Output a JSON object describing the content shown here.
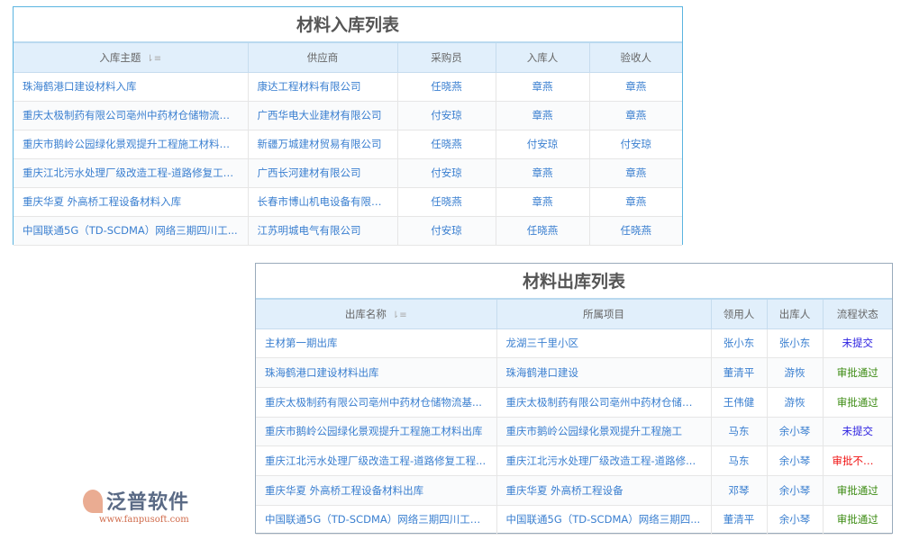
{
  "inbound": {
    "title": "材料入库列表",
    "sort_icon": "sort-icon",
    "columns": [
      "入库主题",
      "供应商",
      "采购员",
      "入库人",
      "验收人"
    ],
    "rows": [
      [
        "珠海鹤港口建设材料入库",
        "康达工程材料有限公司",
        "任晓燕",
        "章燕",
        "章燕"
      ],
      [
        "重庆太极制药有限公司亳州中药材仓储物流基...",
        "广西华电大业建材有限公司",
        "付安琼",
        "章燕",
        "章燕"
      ],
      [
        "重庆市鹅岭公园绿化景观提升工程施工材料入库",
        "新疆万城建材贸易有限公司",
        "任晓燕",
        "付安琼",
        "付安琼"
      ],
      [
        "重庆江北污水处理厂级改造工程-道路修复工程...",
        "广西长河建材有限公司",
        "付安琼",
        "章燕",
        "章燕"
      ],
      [
        "重庆华夏 外高桥工程设备材料入库",
        "长春市博山机电设备有限公司",
        "任晓燕",
        "章燕",
        "章燕"
      ],
      [
        "中国联通5G（TD-SCDMA）网络三期四川工...",
        "江苏明城电气有限公司",
        "付安琼",
        "任晓燕",
        "任晓燕"
      ]
    ]
  },
  "outbound": {
    "title": "材料出库列表",
    "columns": [
      "出库名称",
      "所属项目",
      "领用人",
      "出库人",
      "流程状态"
    ],
    "rows": [
      [
        "主材第一期出库",
        "龙湖三千里小区",
        "张小东",
        "张小东",
        "未提交"
      ],
      [
        "珠海鹤港口建设材料出库",
        "珠海鹤港口建设",
        "董清平",
        "游恢",
        "审批通过"
      ],
      [
        "重庆太极制药有限公司亳州中药材仓储物流基...",
        "重庆太极制药有限公司亳州中药材仓储物...",
        "王伟健",
        "游恢",
        "审批通过"
      ],
      [
        "重庆市鹅岭公园绿化景观提升工程施工材料出库",
        "重庆市鹅岭公园绿化景观提升工程施工",
        "马东",
        "余小琴",
        "未提交"
      ],
      [
        "重庆江北污水处理厂级改造工程-道路修复工程...",
        "重庆江北污水处理厂级改造工程-道路修...",
        "马东",
        "余小琴",
        "审批不通过"
      ],
      [
        "重庆华夏 外高桥工程设备材料出库",
        "重庆华夏 外高桥工程设备",
        "邓琴",
        "余小琴",
        "审批通过"
      ],
      [
        "中国联通5G（TD-SCDMA）网络三期四川工程...",
        "中国联通5G（TD-SCDMA）网络三期四...",
        "董清平",
        "余小琴",
        "审批通过"
      ]
    ]
  },
  "status_colors": {
    "未提交": "#2a1ee0",
    "审批通过": "#3a8a10",
    "审批不通过": "#f01010"
  },
  "watermark": {
    "brand": "泛普软件",
    "url": "www.fanpusoft.com"
  }
}
